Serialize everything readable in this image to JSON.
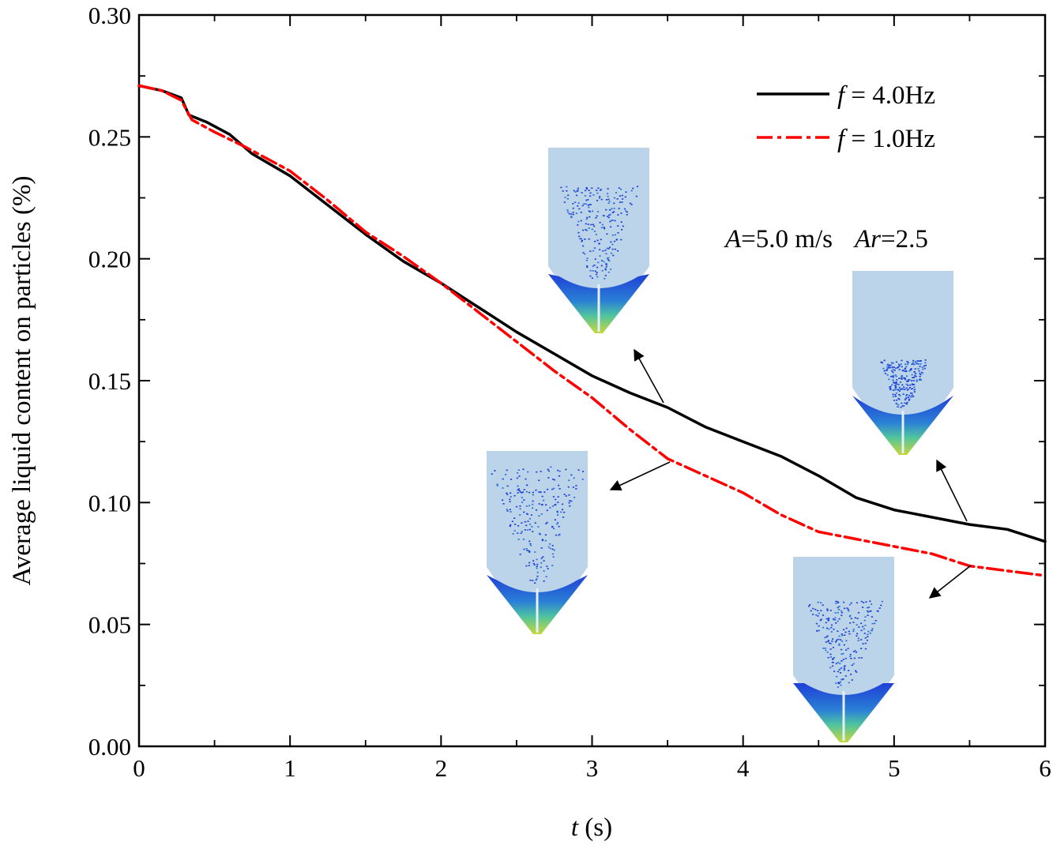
{
  "chart_data": {
    "type": "line",
    "xlabel": {
      "var": "t",
      "unit": " (s)"
    },
    "ylabel": "Average liquid content on particles (%)",
    "xlim": [
      0,
      6
    ],
    "ylim": [
      0,
      0.3
    ],
    "x_ticks": [
      "0",
      "1",
      "2",
      "3",
      "4",
      "5",
      "6"
    ],
    "y_ticks": [
      "0.00",
      "0.05",
      "0.10",
      "0.15",
      "0.20",
      "0.25",
      "0.30"
    ],
    "grid": false,
    "legend_position": "top-right",
    "annotation": {
      "a_var": "A",
      "a_val": "=5.0 m/s",
      "ar_var": "Ar",
      "ar_val": "=2.5"
    },
    "series": [
      {
        "name": "f = 4.0Hz",
        "name_var": "f",
        "name_val": " = 4.0Hz",
        "color": "#000000",
        "dash": "solid",
        "x": [
          0,
          0.15,
          0.28,
          0.33,
          0.45,
          0.6,
          0.75,
          1.0,
          1.25,
          1.5,
          1.75,
          2.0,
          2.25,
          2.5,
          2.75,
          3.0,
          3.25,
          3.5,
          3.75,
          4.0,
          4.25,
          4.5,
          4.75,
          5.0,
          5.25,
          5.5,
          5.75,
          6.0
        ],
        "y": [
          0.271,
          0.269,
          0.266,
          0.259,
          0.256,
          0.251,
          0.243,
          0.234,
          0.222,
          0.21,
          0.199,
          0.19,
          0.18,
          0.17,
          0.161,
          0.152,
          0.145,
          0.139,
          0.131,
          0.125,
          0.119,
          0.111,
          0.102,
          0.097,
          0.094,
          0.091,
          0.089,
          0.084
        ]
      },
      {
        "name": "f = 1.0Hz",
        "name_var": "f",
        "name_val": " = 1.0Hz",
        "color": "#ff0000",
        "dash": "dashdot",
        "x": [
          0,
          0.15,
          0.28,
          0.35,
          0.5,
          0.7,
          1.0,
          1.25,
          1.5,
          1.75,
          2.0,
          2.25,
          2.5,
          2.75,
          3.0,
          3.25,
          3.5,
          3.75,
          4.0,
          4.25,
          4.5,
          4.75,
          5.0,
          5.25,
          5.5,
          5.75,
          6.0
        ],
        "y": [
          0.271,
          0.269,
          0.265,
          0.257,
          0.252,
          0.246,
          0.236,
          0.224,
          0.211,
          0.201,
          0.19,
          0.178,
          0.166,
          0.154,
          0.143,
          0.13,
          0.118,
          0.111,
          0.104,
          0.095,
          0.088,
          0.085,
          0.082,
          0.079,
          0.074,
          0.072,
          0.07
        ]
      }
    ]
  },
  "snapshots": [
    {
      "name": "snapshot-1",
      "label_for": "f = 4.0Hz"
    },
    {
      "name": "snapshot-2",
      "label_for": "f = 1.0Hz"
    },
    {
      "name": "snapshot-3",
      "label_for": "f = 4.0Hz"
    },
    {
      "name": "snapshot-4",
      "label_for": "f = 1.0Hz"
    }
  ]
}
